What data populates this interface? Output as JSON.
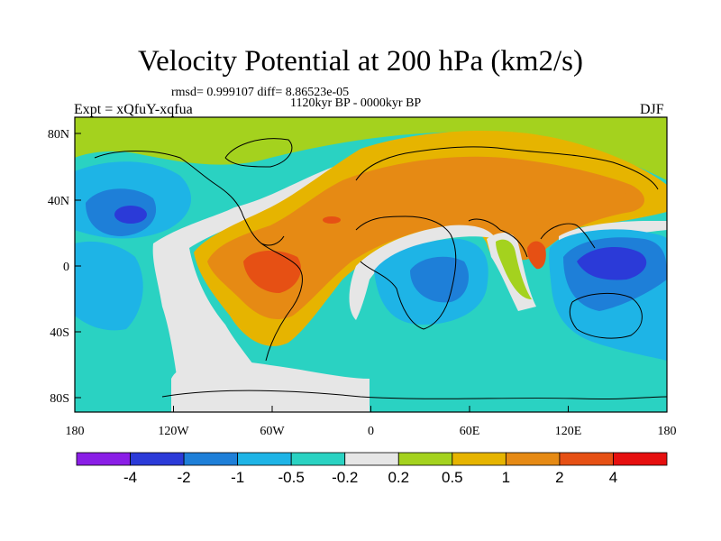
{
  "title": "Velocity Potential at 200 hPa (km2/s)",
  "stats_line": "rmsd= 0.999107 diff= 8.86523e-05",
  "period": "1120kyr BP - 0000kyr BP",
  "experiment": "Expt = xQfuY-xqfua",
  "season": "DJF",
  "lat_ticks": [
    "80N",
    "40N",
    "0",
    "40S",
    "80S"
  ],
  "lon_ticks": [
    "180",
    "120W",
    "60W",
    "0",
    "60E",
    "120E",
    "180"
  ],
  "colorbar": {
    "labels": [
      "-4",
      "-2",
      "-1",
      "-0.5",
      "-0.2",
      "0.2",
      "0.5",
      "1",
      "2",
      "4"
    ],
    "colors": [
      "#8a1ee6",
      "#2b3ad8",
      "#1e7fd8",
      "#1eb4e6",
      "#2ad2c2",
      "#e6e6e6",
      "#a4d21e",
      "#e6b400",
      "#e68a14",
      "#e65014",
      "#e60f0f"
    ]
  },
  "colors": {
    "background": "#2ad2c2",
    "neutral": "#e6e6e6"
  }
}
